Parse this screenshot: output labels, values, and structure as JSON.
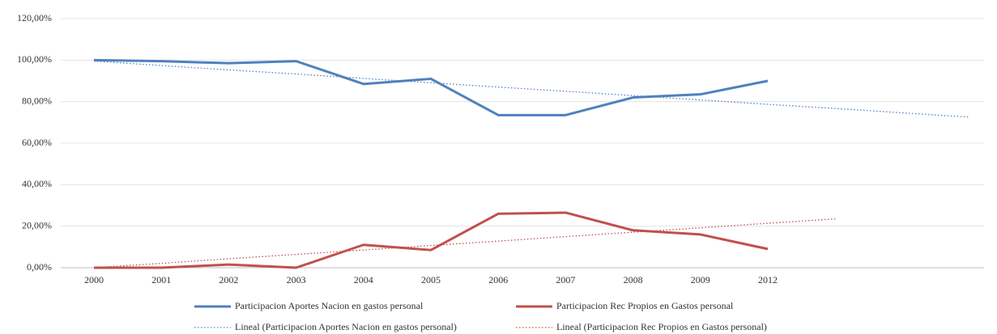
{
  "chart_data": {
    "type": "line",
    "categories": [
      "2000",
      "2001",
      "2002",
      "2003",
      "2004",
      "2005",
      "2006",
      "2007",
      "2008",
      "2009",
      "2012",
      null,
      null,
      null
    ],
    "series": [
      {
        "name": "Participacion Aportes Nacion en gastos personal",
        "color": "#4f81bd",
        "style": "solid",
        "values": [
          100,
          99.5,
          98.5,
          99.5,
          88.5,
          91,
          73.5,
          73.5,
          82,
          83.5,
          90,
          null,
          null,
          null
        ]
      },
      {
        "name": "Participacion Rec Propios en Gastos personal",
        "color": "#c0504d",
        "style": "solid",
        "values": [
          0,
          0,
          1.5,
          0,
          11,
          8.5,
          26,
          26.5,
          18,
          16,
          9,
          null,
          null,
          null
        ]
      },
      {
        "name": "Lineal (Participacion Aportes Nacion en gastos personal)",
        "color": "#4f81bd",
        "style": "dotted",
        "values": [
          99.5,
          97.4,
          95.3,
          93.3,
          91.2,
          89.1,
          87.0,
          85.0,
          82.9,
          80.8,
          78.7,
          76.7,
          74.6,
          72.5
        ]
      },
      {
        "name": "Lineal (Participacion Rec Propios en Gastos personal)",
        "color": "#c0504d",
        "style": "dotted",
        "values": [
          0,
          2.1,
          4.3,
          6.4,
          8.5,
          10.7,
          12.8,
          15.0,
          17.1,
          19.2,
          21.4,
          23.5,
          null,
          null
        ]
      }
    ],
    "ylim": [
      0,
      120
    ],
    "yticks": [
      {
        "value": 0,
        "label": "0,00%"
      },
      {
        "value": 20,
        "label": "20,00%"
      },
      {
        "value": 40,
        "label": "40,00%"
      },
      {
        "value": 60,
        "label": "60,00%"
      },
      {
        "value": 80,
        "label": "80,00%"
      },
      {
        "value": 100,
        "label": "100,00%"
      },
      {
        "value": 120,
        "label": "120,00%"
      }
    ],
    "grid": true,
    "legend": "bottom"
  }
}
